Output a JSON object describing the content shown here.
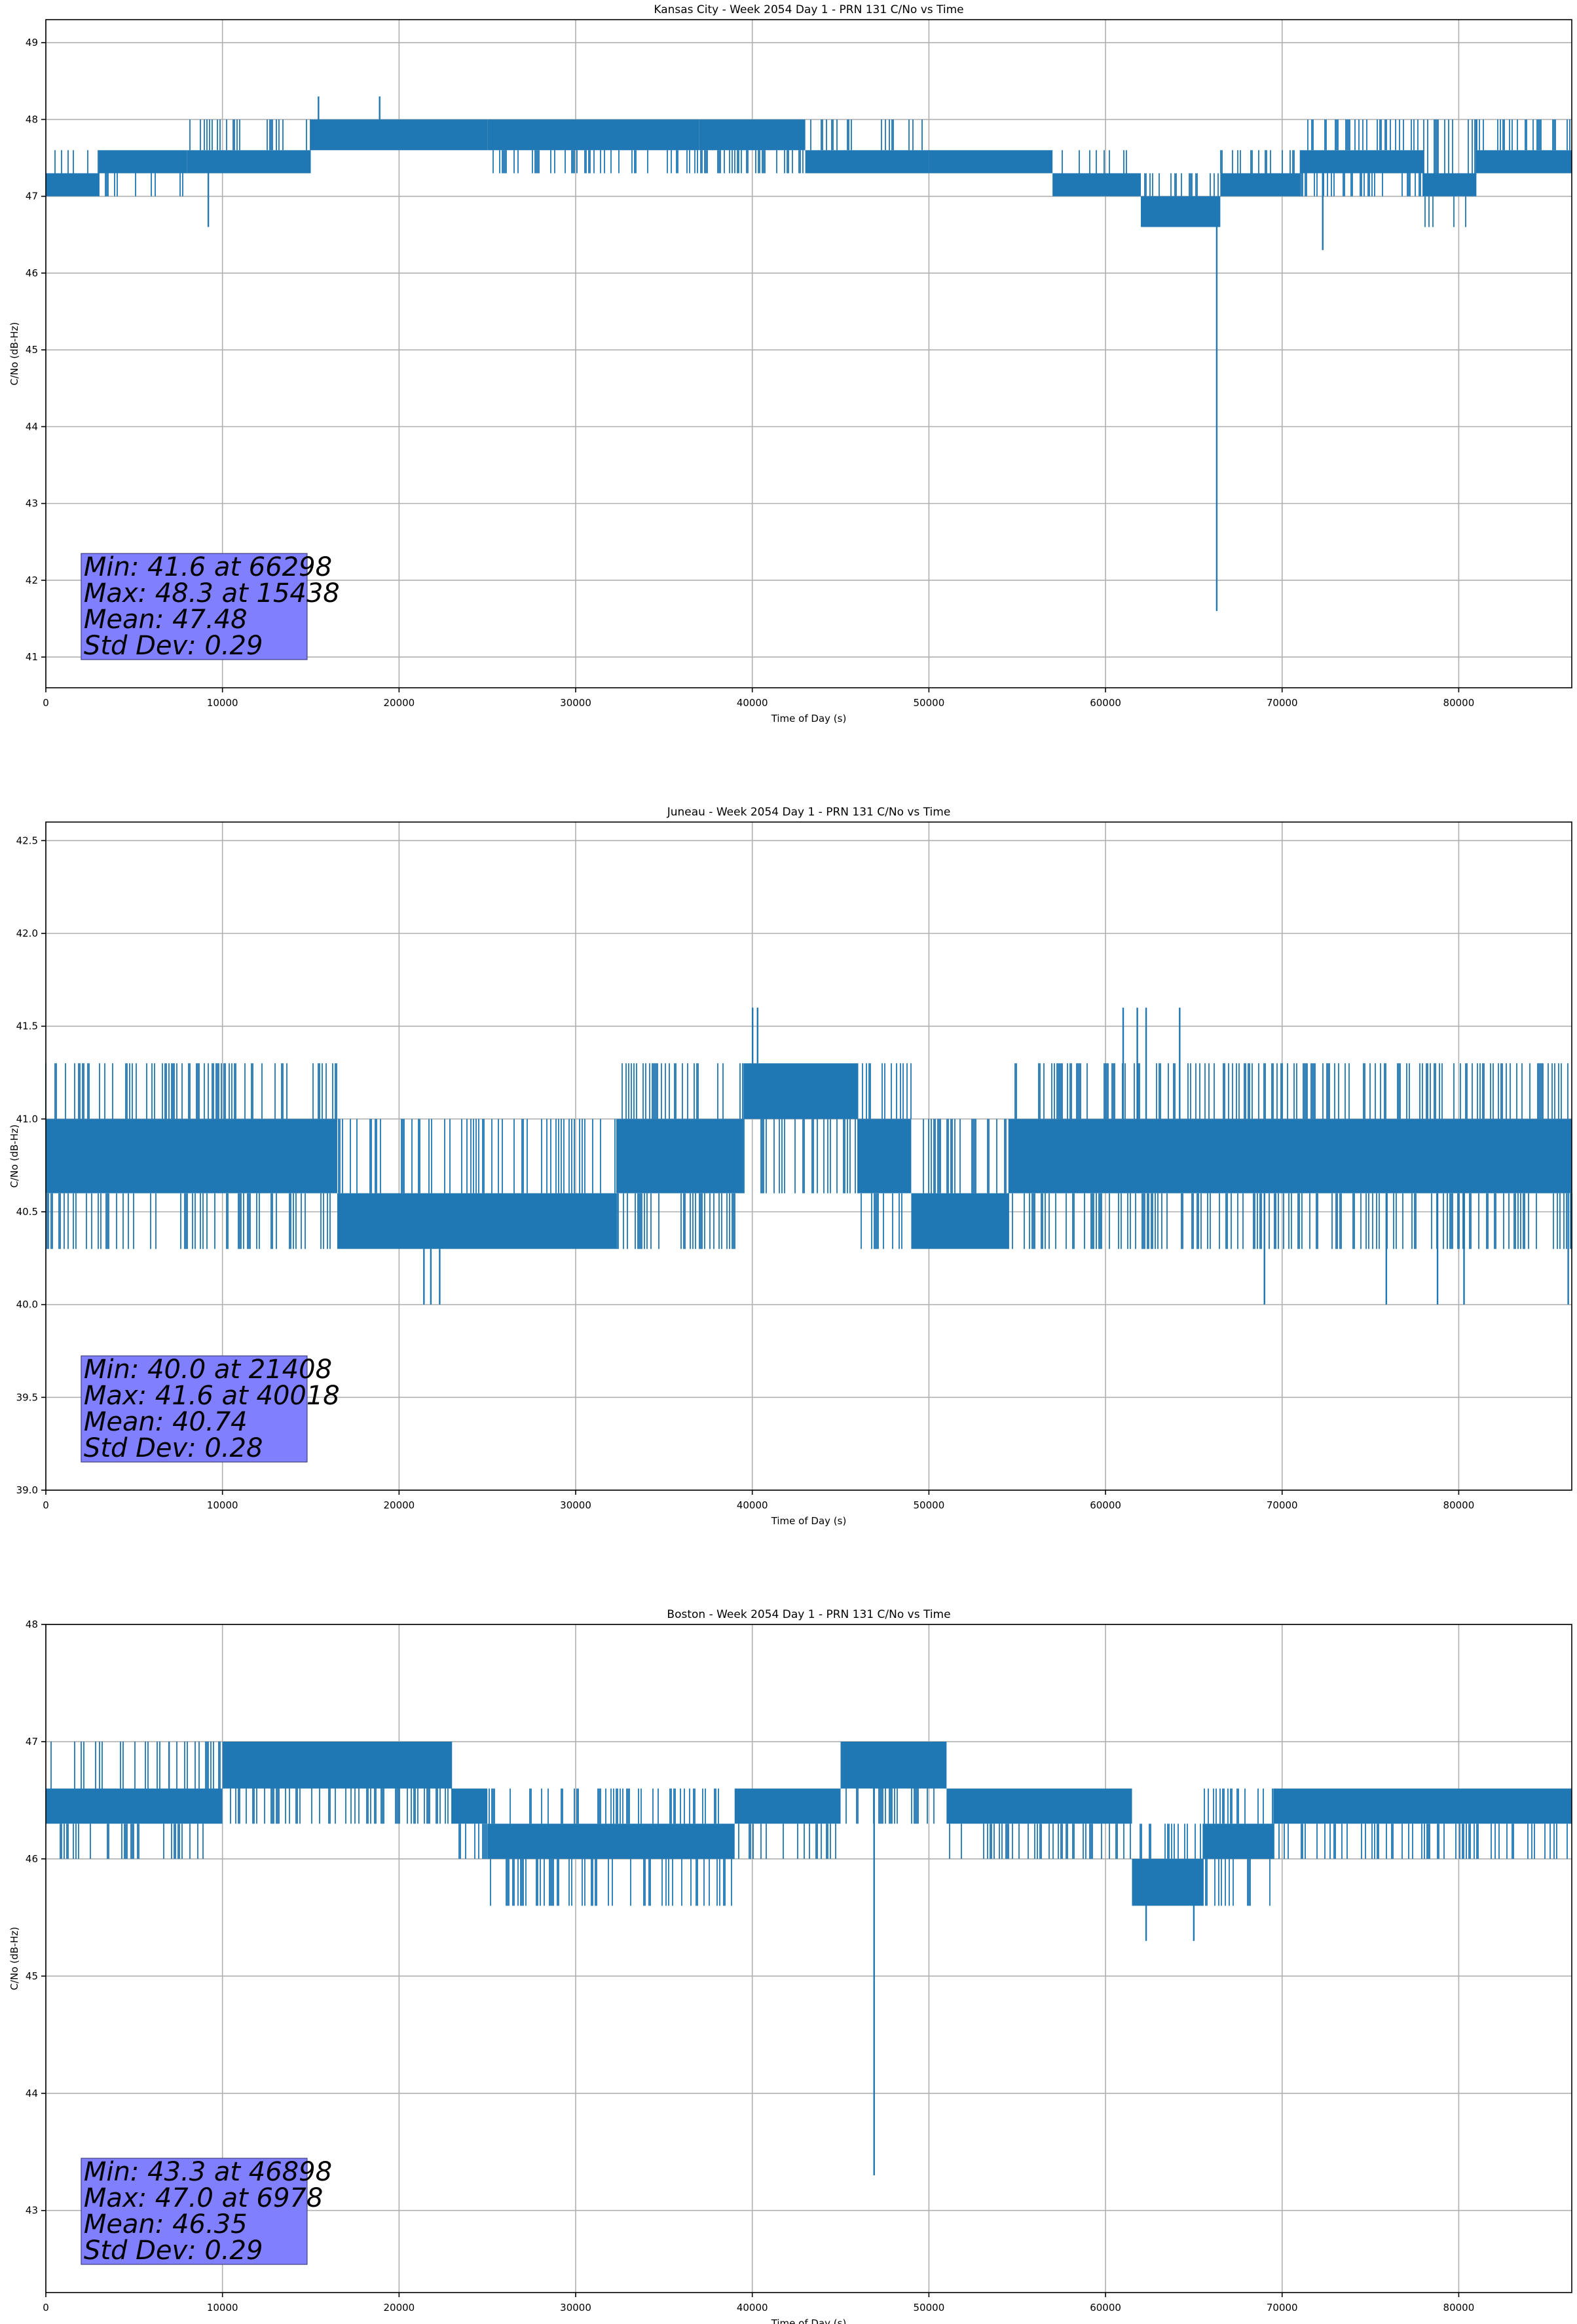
{
  "chart_data": [
    {
      "type": "line",
      "title": "Kansas City - Week 2054 Day 1 - PRN 131 C/No vs Time",
      "xlabel": "Time of Day (s)",
      "ylabel": "C/No (dB-Hz)",
      "xlim": [
        0,
        86400
      ],
      "ylim": [
        40.6,
        49.3
      ],
      "xticks": [
        0,
        10000,
        20000,
        30000,
        40000,
        50000,
        60000,
        70000,
        80000
      ],
      "yticks": [
        41,
        42,
        43,
        44,
        45,
        46,
        47,
        48,
        49
      ],
      "ytick_decimals": 0,
      "grid": true,
      "series": [
        {
          "color": "#1f77b4",
          "segments": [
            {
              "x0": 0,
              "x1": 3000,
              "lo": 47.0,
              "hi": 47.3,
              "max": 47.6,
              "min": 47.0,
              "density": 0.35
            },
            {
              "x0": 3000,
              "x1": 8000,
              "lo": 47.3,
              "hi": 47.6,
              "max": 47.6,
              "min": 47.0,
              "density": 0.3
            },
            {
              "x0": 8000,
              "x1": 15000,
              "lo": 47.3,
              "hi": 47.6,
              "max": 48.0,
              "min": 47.3,
              "density": 0.55
            },
            {
              "x0": 15000,
              "x1": 25000,
              "lo": 47.6,
              "hi": 48.0,
              "max": 48.0,
              "min": 47.6,
              "density": 0.7
            },
            {
              "x0": 25000,
              "x1": 37000,
              "lo": 47.6,
              "hi": 48.0,
              "max": 48.0,
              "min": 47.3,
              "density": 0.45
            },
            {
              "x0": 37000,
              "x1": 43000,
              "lo": 47.6,
              "hi": 48.0,
              "max": 48.0,
              "min": 47.3,
              "density": 0.6
            },
            {
              "x0": 43000,
              "x1": 50000,
              "lo": 47.3,
              "hi": 47.6,
              "max": 48.0,
              "min": 47.3,
              "density": 0.35
            },
            {
              "x0": 50000,
              "x1": 57000,
              "lo": 47.3,
              "hi": 47.6,
              "max": 47.6,
              "min": 47.3,
              "density": 0.15
            },
            {
              "x0": 57000,
              "x1": 62000,
              "lo": 47.0,
              "hi": 47.3,
              "max": 47.6,
              "min": 47.0,
              "density": 0.3
            },
            {
              "x0": 62000,
              "x1": 66500,
              "lo": 46.6,
              "hi": 47.0,
              "max": 47.3,
              "min": 46.6,
              "density": 0.55
            },
            {
              "x0": 66500,
              "x1": 71000,
              "lo": 47.0,
              "hi": 47.3,
              "max": 47.6,
              "min": 47.0,
              "density": 0.35
            },
            {
              "x0": 71000,
              "x1": 78000,
              "lo": 47.3,
              "hi": 47.6,
              "max": 48.0,
              "min": 47.0,
              "density": 0.55
            },
            {
              "x0": 78000,
              "x1": 81000,
              "lo": 47.0,
              "hi": 47.3,
              "max": 48.0,
              "min": 46.6,
              "density": 0.5
            },
            {
              "x0": 81000,
              "x1": 86400,
              "lo": 47.3,
              "hi": 47.6,
              "max": 48.0,
              "min": 47.3,
              "density": 0.55
            }
          ],
          "spikes": [
            [
              9200,
              46.6
            ],
            [
              15438,
              48.3
            ],
            [
              18900,
              48.3
            ],
            [
              66298,
              41.6
            ],
            [
              72300,
              46.3
            ]
          ]
        }
      ],
      "annotation_lines": [
        "Min: 41.6 at 66298",
        "Max: 48.3 at 15438",
        "Mean: 47.48",
        "Std Dev: 0.29"
      ]
    },
    {
      "type": "line",
      "title": "Juneau - Week 2054 Day 1 - PRN 131 C/No vs Time",
      "xlabel": "Time of Day (s)",
      "ylabel": "C/No (dB-Hz)",
      "xlim": [
        0,
        86400
      ],
      "ylim": [
        39.0,
        42.6
      ],
      "xticks": [
        0,
        10000,
        20000,
        30000,
        40000,
        50000,
        60000,
        70000,
        80000
      ],
      "yticks": [
        39.0,
        39.5,
        40.0,
        40.5,
        41.0,
        41.5,
        42.0,
        42.5
      ],
      "ytick_decimals": 1,
      "grid": true,
      "series": [
        {
          "color": "#1f77b4",
          "segments": [
            {
              "x0": 0,
              "x1": 16500,
              "lo": 40.6,
              "hi": 41.0,
              "max": 41.3,
              "min": 40.3,
              "density": 0.6
            },
            {
              "x0": 16500,
              "x1": 32300,
              "lo": 40.3,
              "hi": 40.6,
              "max": 41.0,
              "min": 40.3,
              "density": 0.55
            },
            {
              "x0": 32300,
              "x1": 39500,
              "lo": 40.6,
              "hi": 41.0,
              "max": 41.3,
              "min": 40.3,
              "density": 0.6
            },
            {
              "x0": 39500,
              "x1": 46000,
              "lo": 41.0,
              "hi": 41.3,
              "max": 41.3,
              "min": 40.6,
              "density": 0.6
            },
            {
              "x0": 46000,
              "x1": 49000,
              "lo": 40.6,
              "hi": 41.0,
              "max": 41.3,
              "min": 40.3,
              "density": 0.5
            },
            {
              "x0": 49000,
              "x1": 54500,
              "lo": 40.3,
              "hi": 40.6,
              "max": 41.0,
              "min": 40.3,
              "density": 0.55
            },
            {
              "x0": 54500,
              "x1": 86400,
              "lo": 40.6,
              "hi": 41.0,
              "max": 41.3,
              "min": 40.3,
              "density": 0.6
            }
          ],
          "spikes": [
            [
              21408,
              40.0
            ],
            [
              21800,
              40.0
            ],
            [
              22300,
              40.0
            ],
            [
              40018,
              41.6
            ],
            [
              40300,
              41.6
            ],
            [
              61000,
              41.6
            ],
            [
              61800,
              41.6
            ],
            [
              62300,
              41.6
            ],
            [
              64200,
              41.6
            ],
            [
              69000,
              40.0
            ],
            [
              75900,
              40.0
            ],
            [
              78800,
              40.0
            ],
            [
              80300,
              40.0
            ],
            [
              86200,
              40.0
            ]
          ]
        }
      ],
      "annotation_lines": [
        "Min: 40.0 at 21408",
        "Max: 41.6 at 40018",
        "Mean: 40.74",
        "Std Dev: 0.28"
      ]
    },
    {
      "type": "line",
      "title": "Boston - Week 2054 Day 1 - PRN 131 C/No vs Time",
      "xlabel": "Time of Day (s)",
      "ylabel": "C/No (dB-Hz)",
      "xlim": [
        0,
        86400
      ],
      "ylim": [
        42.3,
        48.0
      ],
      "xticks": [
        0,
        10000,
        20000,
        30000,
        40000,
        50000,
        60000,
        70000,
        80000
      ],
      "yticks": [
        43,
        44,
        45,
        46,
        47,
        48
      ],
      "ytick_decimals": 0,
      "grid": true,
      "series": [
        {
          "color": "#1f77b4",
          "segments": [
            {
              "x0": 0,
              "x1": 10000,
              "lo": 46.3,
              "hi": 46.6,
              "max": 47.0,
              "min": 46.0,
              "density": 0.5
            },
            {
              "x0": 10000,
              "x1": 23000,
              "lo": 46.6,
              "hi": 47.0,
              "max": 47.0,
              "min": 46.3,
              "density": 0.6
            },
            {
              "x0": 23000,
              "x1": 25000,
              "lo": 46.3,
              "hi": 46.6,
              "max": 46.6,
              "min": 46.0,
              "density": 0.4
            },
            {
              "x0": 25000,
              "x1": 39000,
              "lo": 46.0,
              "hi": 46.3,
              "max": 46.6,
              "min": 45.6,
              "density": 0.55
            },
            {
              "x0": 39000,
              "x1": 45000,
              "lo": 46.3,
              "hi": 46.6,
              "max": 46.6,
              "min": 46.0,
              "density": 0.5
            },
            {
              "x0": 45000,
              "x1": 51000,
              "lo": 46.6,
              "hi": 47.0,
              "max": 47.0,
              "min": 46.3,
              "density": 0.55
            },
            {
              "x0": 51000,
              "x1": 61500,
              "lo": 46.3,
              "hi": 46.6,
              "max": 46.6,
              "min": 46.0,
              "density": 0.5
            },
            {
              "x0": 61500,
              "x1": 65500,
              "lo": 45.6,
              "hi": 46.0,
              "max": 46.3,
              "min": 45.6,
              "density": 0.6
            },
            {
              "x0": 65500,
              "x1": 69500,
              "lo": 46.0,
              "hi": 46.3,
              "max": 46.6,
              "min": 45.6,
              "density": 0.5
            },
            {
              "x0": 69500,
              "x1": 86400,
              "lo": 46.3,
              "hi": 46.6,
              "max": 46.6,
              "min": 46.0,
              "density": 0.55
            }
          ],
          "spikes": [
            [
              6978,
              47.0
            ],
            [
              46898,
              43.3
            ],
            [
              62300,
              45.3
            ],
            [
              65000,
              45.3
            ]
          ]
        }
      ],
      "annotation_lines": [
        "Min: 43.3 at 46898",
        "Max: 47.0 at 6978",
        "Mean: 46.35",
        "Std Dev: 0.29"
      ]
    }
  ]
}
